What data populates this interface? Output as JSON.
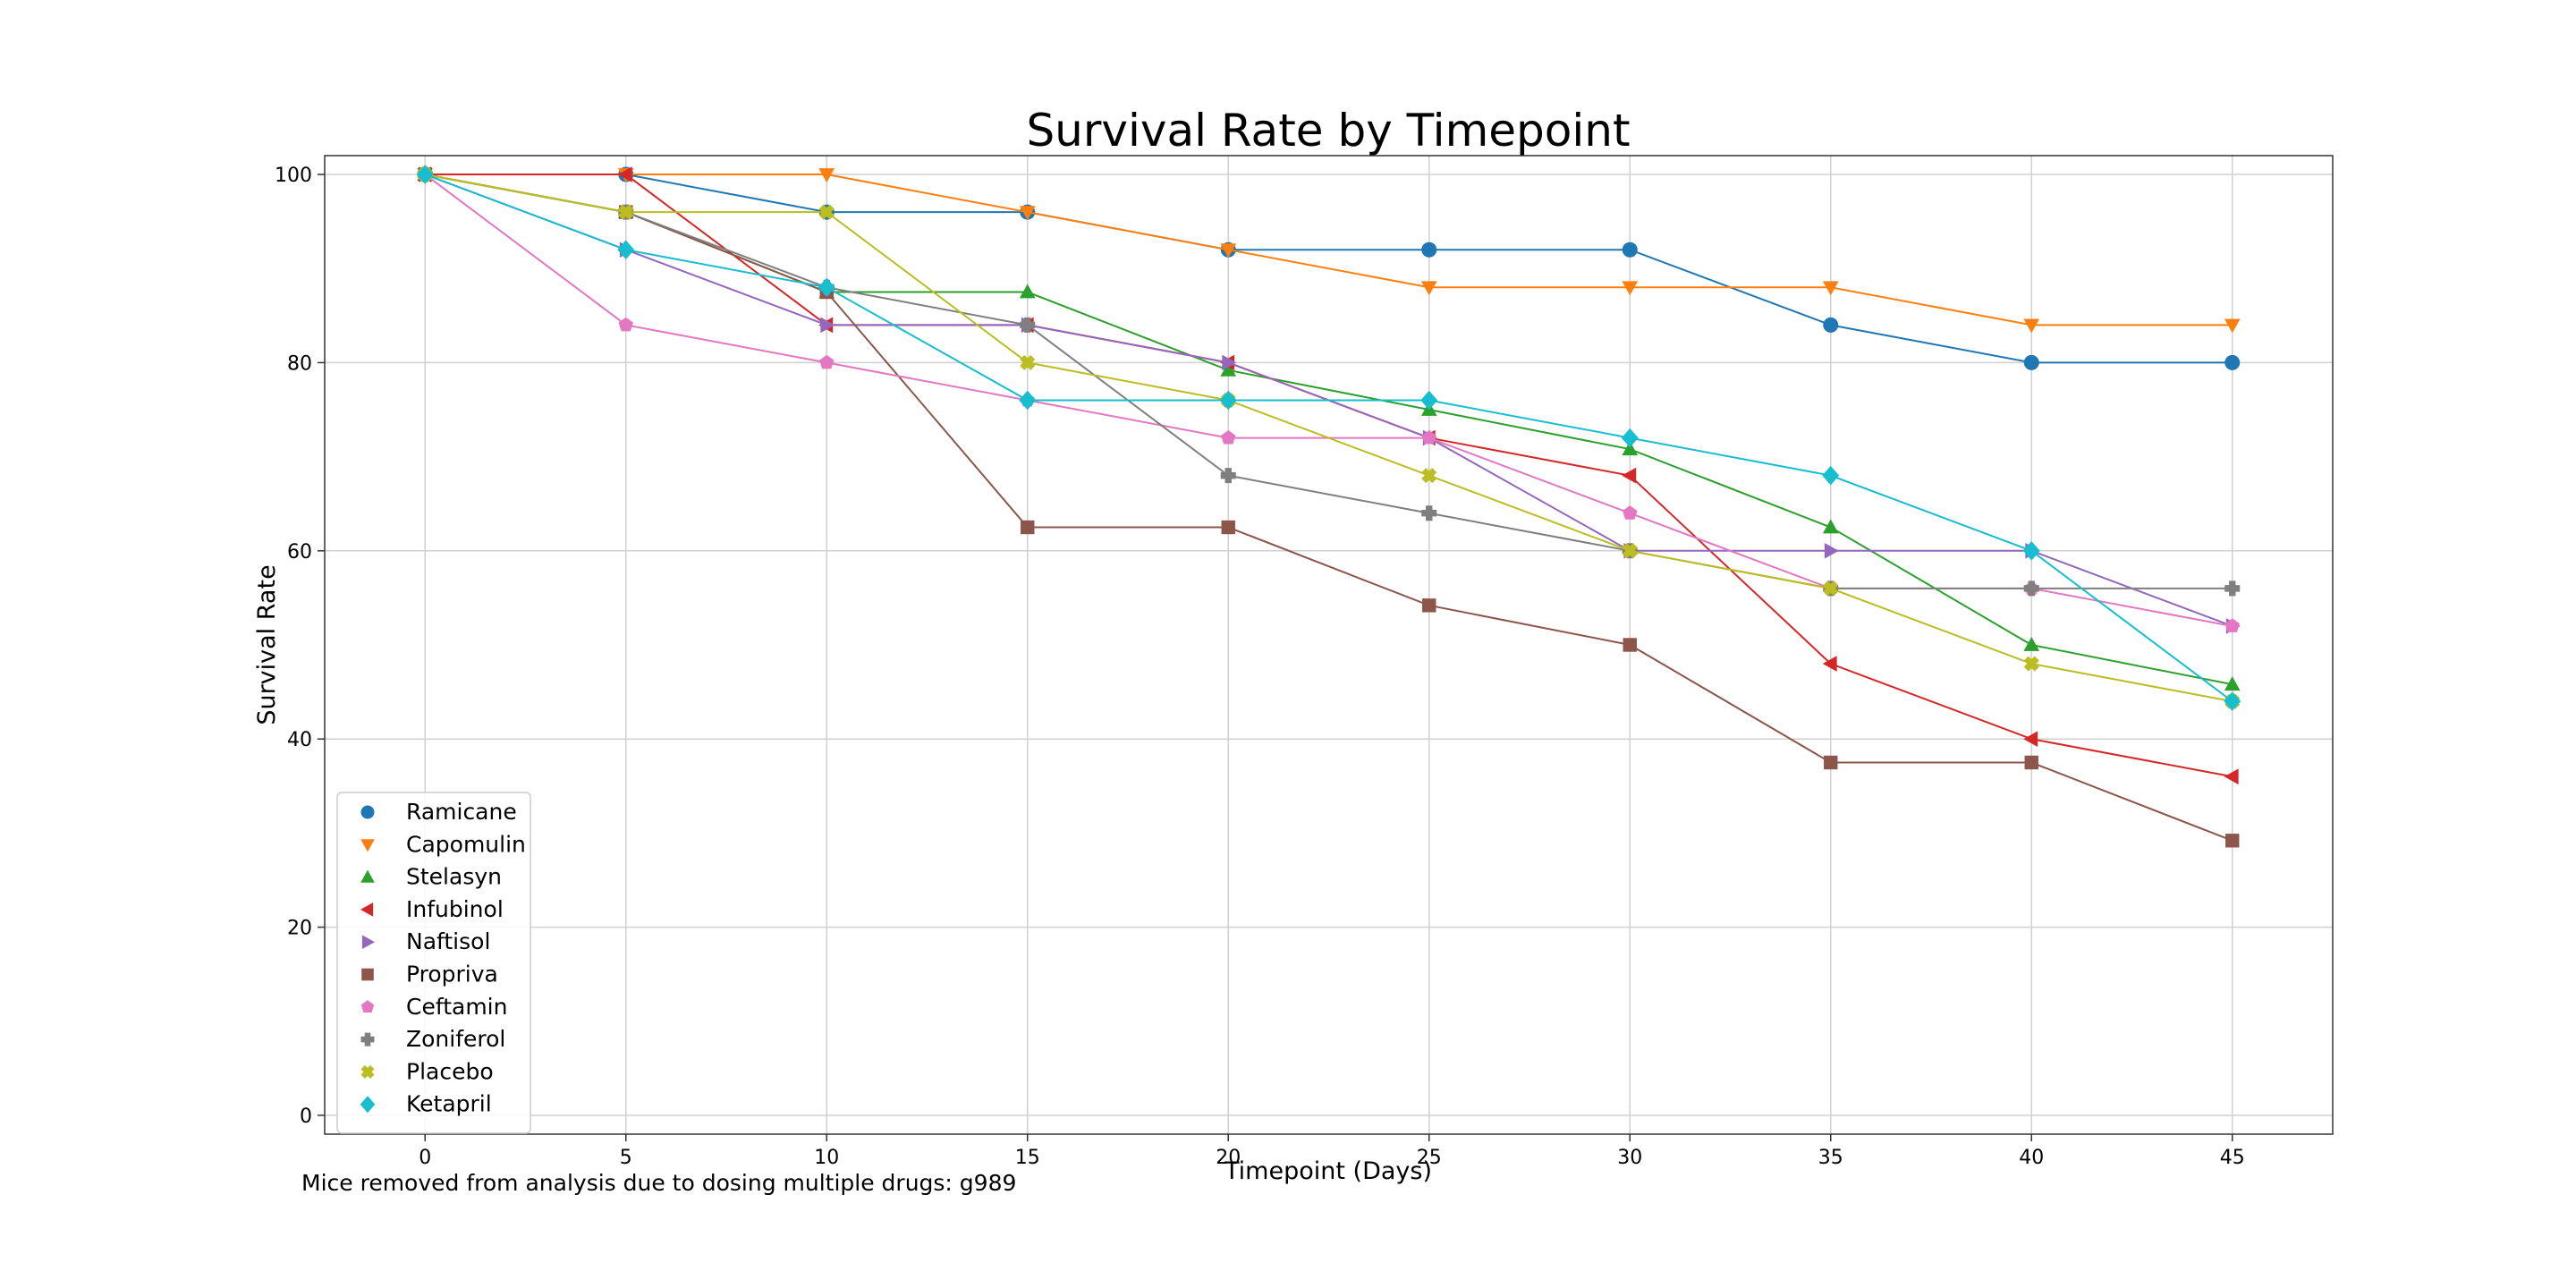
{
  "chart_data": {
    "type": "line",
    "title": "Survival Rate by Timepoint",
    "xlabel": "Timepoint (Days)",
    "ylabel": "Survival Rate",
    "x": [
      0,
      5,
      10,
      15,
      20,
      25,
      30,
      35,
      40,
      45
    ],
    "xlim": [
      -2.5,
      47.5
    ],
    "ylim": [
      -2,
      102
    ],
    "xticks": [
      0,
      5,
      10,
      15,
      20,
      25,
      30,
      35,
      40,
      45
    ],
    "yticks": [
      0,
      20,
      40,
      60,
      80,
      100
    ],
    "grid": true,
    "legend_position": "lower-left",
    "footnote": "Mice removed from analysis due to dosing multiple drugs: g989",
    "series": [
      {
        "name": "Ramicane",
        "color": "#1f77b4",
        "marker": "circle",
        "values": [
          100,
          100,
          96,
          96,
          92,
          92,
          92,
          84,
          80,
          80
        ]
      },
      {
        "name": "Capomulin",
        "color": "#ff7f0e",
        "marker": "triangle-down",
        "values": [
          100,
          100,
          100,
          96,
          92,
          88,
          88,
          88,
          84,
          84
        ]
      },
      {
        "name": "Stelasyn",
        "color": "#2ca02c",
        "marker": "triangle-up",
        "values": [
          100,
          96,
          87.5,
          87.5,
          79.2,
          75,
          70.8,
          62.5,
          50,
          45.8
        ]
      },
      {
        "name": "Infubinol",
        "color": "#d62728",
        "marker": "triangle-left",
        "values": [
          100,
          100,
          84,
          84,
          80,
          72,
          68,
          48,
          40,
          36
        ]
      },
      {
        "name": "Naftisol",
        "color": "#9467bd",
        "marker": "triangle-right",
        "values": [
          100,
          92,
          84,
          84,
          80,
          72,
          60,
          60,
          60,
          52
        ]
      },
      {
        "name": "Propriva",
        "color": "#8c564b",
        "marker": "square",
        "values": [
          100,
          96,
          87.5,
          62.5,
          62.5,
          54.2,
          50,
          37.5,
          37.5,
          29.2
        ]
      },
      {
        "name": "Ceftamin",
        "color": "#e377c2",
        "marker": "pentagon",
        "values": [
          100,
          84,
          80,
          76,
          72,
          72,
          64,
          56,
          56,
          52
        ]
      },
      {
        "name": "Zoniferol",
        "color": "#7f7f7f",
        "marker": "plus",
        "values": [
          100,
          96,
          88,
          84,
          68,
          64,
          60,
          56,
          56,
          56
        ]
      },
      {
        "name": "Placebo",
        "color": "#bcbd22",
        "marker": "x",
        "values": [
          100,
          96,
          96,
          80,
          76,
          68,
          60,
          56,
          48,
          44
        ]
      },
      {
        "name": "Ketapril",
        "color": "#17becf",
        "marker": "diamond",
        "values": [
          100,
          92,
          88,
          76,
          76,
          76,
          72,
          68,
          60,
          44
        ]
      }
    ]
  }
}
